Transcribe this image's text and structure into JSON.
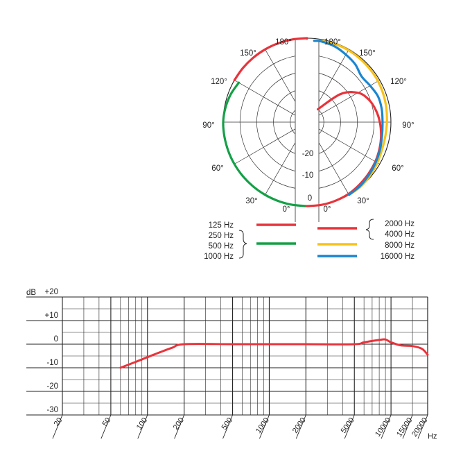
{
  "chart_data": [
    {
      "type": "polar",
      "angle_labels_left": [
        "180°",
        "150°",
        "120°",
        "90°",
        "60°",
        "30°",
        "0°"
      ],
      "angle_labels_right": [
        "180°",
        "150°",
        "120°",
        "90°",
        "60°",
        "30°",
        "0°"
      ],
      "radial_ticks": [
        "-20",
        "-10",
        "0"
      ],
      "rlim": [
        -25,
        0
      ],
      "legend": {
        "left": [
          {
            "labels": [
              "125 Hz"
            ],
            "color": "#e8333a"
          },
          {
            "labels": [
              "250 Hz",
              "500 Hz",
              "1000 Hz"
            ],
            "color": "#14a046"
          }
        ],
        "right": [
          {
            "labels": [
              "2000 Hz",
              "4000 Hz"
            ],
            "color": "#e8333a"
          },
          {
            "labels": [
              "8000 Hz"
            ],
            "color": "#f8c21a"
          },
          {
            "labels": [
              "16000 Hz"
            ],
            "color": "#1a86d1"
          }
        ]
      },
      "series": [
        {
          "side": "left",
          "color": "#e8333a",
          "angles": [
            180,
            170,
            160,
            150,
            140,
            130,
            120
          ],
          "db": [
            0,
            0,
            0,
            0,
            0,
            0,
            0
          ]
        },
        {
          "side": "left",
          "color": "#14a046",
          "angles": [
            120,
            110,
            100,
            90,
            80,
            70,
            60,
            50,
            40,
            30,
            20,
            10,
            0
          ],
          "db": [
            -1.5,
            -0.8,
            -0.3,
            0,
            0,
            0,
            0,
            0,
            0,
            0,
            0,
            0,
            0
          ]
        },
        {
          "side": "right",
          "color": "#e8333a",
          "angles": [
            0,
            10,
            20,
            30,
            40,
            50,
            60,
            70,
            80,
            90,
            100,
            110,
            120,
            130,
            140
          ],
          "db": [
            0,
            0,
            -0.1,
            -0.3,
            -0.7,
            -1.1,
            -1.5,
            -2,
            -2.6,
            -3.3,
            -4.2,
            -5.4,
            -7.5,
            -12,
            -20
          ]
        },
        {
          "side": "right",
          "color": "#f8c21a",
          "angles": [
            30,
            40,
            50,
            60,
            70,
            80,
            90,
            100,
            110,
            120,
            130,
            140,
            150,
            160,
            170,
            175
          ],
          "db": [
            0,
            0,
            -0.4,
            -0.8,
            -1.2,
            -1.3,
            -1.2,
            -1,
            -0.8,
            -0.6,
            -0.5,
            -0.4,
            -0.3,
            -0.3,
            -0.5,
            -0.7
          ]
        },
        {
          "side": "right",
          "color": "#1a86d1",
          "angles": [
            30,
            40,
            50,
            60,
            70,
            80,
            90,
            100,
            110,
            120,
            130,
            140,
            150,
            160,
            170,
            175
          ],
          "db": [
            0,
            -0.3,
            -0.8,
            -1.3,
            -1.8,
            -2.3,
            -2.5,
            -2.4,
            -2.5,
            -3.3,
            -3.8,
            -2.6,
            -1.8,
            -1,
            -0.6,
            -0.7
          ]
        }
      ]
    },
    {
      "type": "line",
      "xscale": "log",
      "xlim": [
        20,
        20000
      ],
      "ylim": [
        -30,
        20
      ],
      "xlabel": "Hz",
      "ylabel": "dB",
      "y_ticks": [
        20,
        10,
        0,
        -10,
        -20,
        -30
      ],
      "y_tick_labels": [
        "+20",
        "+10",
        "0",
        "-10",
        "-20",
        "-30"
      ],
      "x_tick_labels": [
        "20",
        "50",
        "100",
        "200",
        "500",
        "1000",
        "2000",
        "5000",
        "10000",
        "15000",
        "20000"
      ],
      "x_tick_values": [
        20,
        50,
        100,
        200,
        500,
        1000,
        2000,
        5000,
        10000,
        15000,
        20000
      ],
      "grid": true,
      "series": [
        {
          "color": "#e8333a",
          "x": [
            60,
            80,
            100,
            130,
            160,
            200,
            500,
            1000,
            2000,
            5000,
            6000,
            8000,
            9000,
            10000,
            12000,
            15000,
            18000,
            20000
          ],
          "y": [
            -10,
            -7.5,
            -5.5,
            -3.2,
            -1.5,
            0,
            0,
            0,
            0,
            0,
            0.8,
            1.8,
            2,
            0.8,
            -0.5,
            -0.8,
            -2,
            -4.5
          ]
        }
      ]
    }
  ]
}
